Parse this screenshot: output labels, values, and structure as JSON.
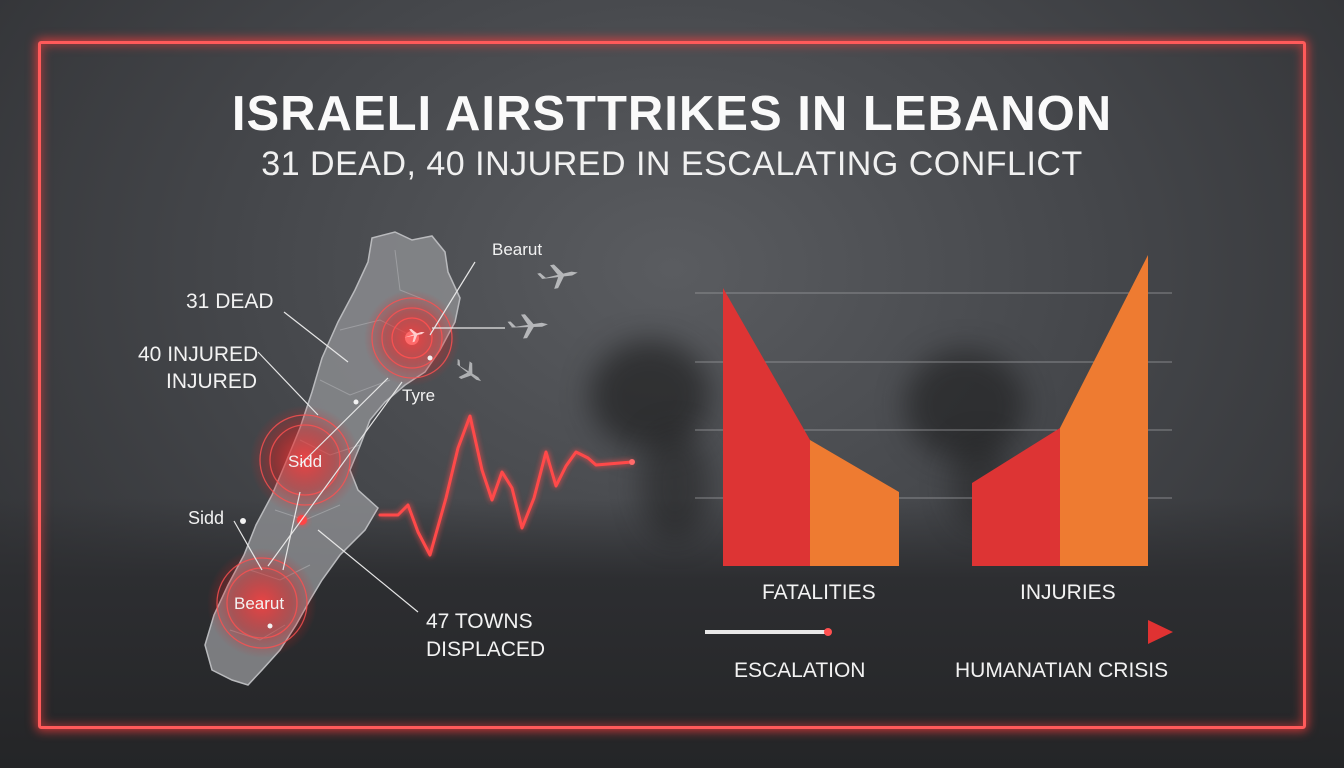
{
  "header": {
    "title": "ISRAELI AIRSTTRIKES IN LEBANON",
    "subtitle": "31 DEAD, 40 INJURED IN ESCALATING CONFLICT"
  },
  "map": {
    "callouts": {
      "dead": "31 DEAD",
      "injured_line1": "40 INJURED",
      "injured_line2": "INJURED",
      "towns_line1": "47 TOWNS",
      "towns_line2": "DISPLACED"
    },
    "places": {
      "top_city": "Bearut",
      "tyre": "Tyre",
      "sidd_marker": "Sidd",
      "sidd_side": "Sidd",
      "bottom_city": "Bearut"
    }
  },
  "chart": {
    "categories": [
      "FATALITIES",
      "INJURIES"
    ]
  },
  "timeline": {
    "start_label": "ESCALATION",
    "end_label": "HUMANATIAN CRISIS"
  },
  "colors": {
    "accent_red": "#e03232",
    "accent_orange": "#ef7a2f",
    "neon_red": "#ff5a5a"
  }
}
